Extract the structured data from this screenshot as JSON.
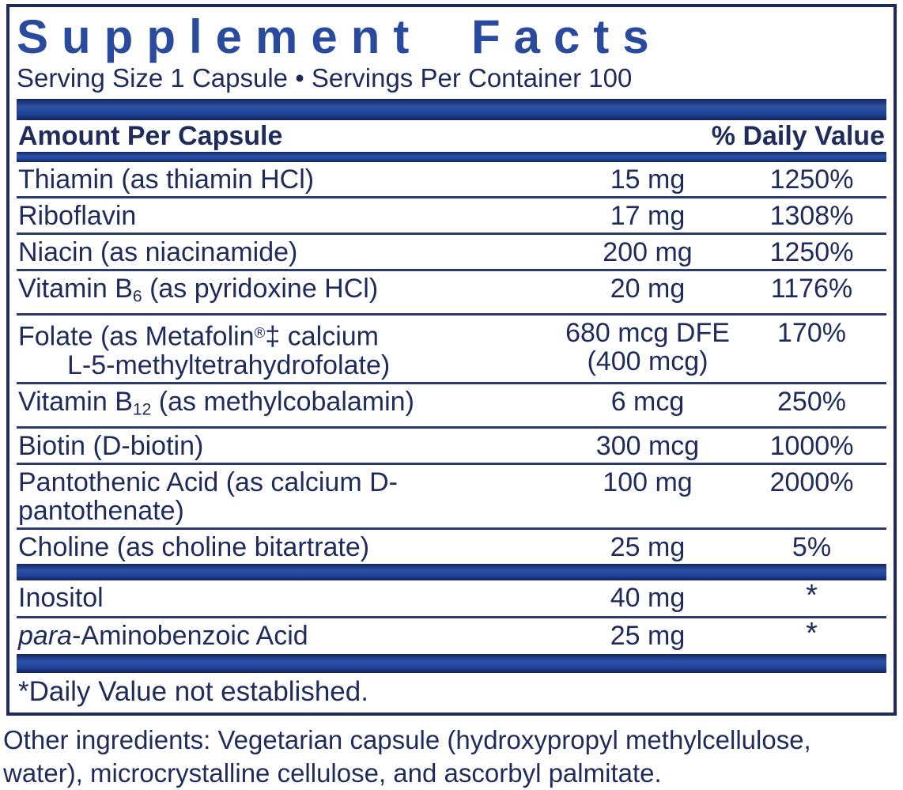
{
  "colors": {
    "text_navy": "#1f2b5c",
    "title_blue": "#2a4a9e",
    "bar_blue": "#20429a",
    "rule_navy": "#2b3a6d"
  },
  "panel": {
    "title": "Supplement Facts",
    "serving_line": "Serving Size 1 Capsule • Servings Per Container 100"
  },
  "table": {
    "col_amount_header": "Amount Per Capsule",
    "col_dv_header": "% Daily Value",
    "rows": [
      {
        "name": [
          {
            "t": "Thiamin (as thiamin HCl)"
          }
        ],
        "amount": "15 mg",
        "dv": "1250%"
      },
      {
        "name": [
          {
            "t": "Riboflavin"
          }
        ],
        "amount": "17 mg",
        "dv": "1308%"
      },
      {
        "name": [
          {
            "t": "Niacin (as niacinamide)"
          }
        ],
        "amount": "200 mg",
        "dv": "1250%"
      },
      {
        "name": [
          {
            "t": "Vitamin B"
          },
          {
            "t": "6",
            "s": "sub"
          },
          {
            "t": " (as pyridoxine HCl)"
          }
        ],
        "amount": "20 mg",
        "dv": "1176%"
      },
      {
        "name": [
          {
            "t": "Folate (as Metafolin"
          },
          {
            "t": "®",
            "s": "sup"
          },
          {
            "t": "‡ calcium"
          }
        ],
        "amount": "680 mcg DFE",
        "dv": "170%",
        "line2": {
          "name": [
            {
              "t": "L-5-methyltetrahydrofolate)"
            }
          ],
          "amount": "(400 mcg)"
        }
      },
      {
        "name": [
          {
            "t": "Vitamin B"
          },
          {
            "t": "12",
            "s": "sub"
          },
          {
            "t": " (as methylcobalamin)"
          }
        ],
        "amount": "6 mcg",
        "dv": "250%"
      },
      {
        "name": [
          {
            "t": "Biotin (D-biotin)"
          }
        ],
        "amount": "300 mcg",
        "dv": "1000%"
      },
      {
        "name": [
          {
            "t": "Pantothenic Acid (as calcium D-pantothenate)"
          }
        ],
        "amount": "100 mg",
        "dv": "2000%"
      },
      {
        "name": [
          {
            "t": "Choline (as choline bitartrate)"
          }
        ],
        "amount": "25 mg",
        "dv": "5%"
      }
    ],
    "rows2": [
      {
        "name": [
          {
            "t": "Inositol"
          }
        ],
        "amount": "40 mg",
        "dv": "*",
        "star": true
      },
      {
        "name": [
          {
            "t": "para",
            "s": "it"
          },
          {
            "t": "-Aminobenzoic Acid"
          }
        ],
        "amount": "25 mg",
        "dv": "*",
        "star": true
      }
    ]
  },
  "footnote": "*Daily Value not established.",
  "other_ingredients": {
    "line1": "Other ingredients: Vegetarian capsule (hydroxypropyl methylcellulose,",
    "line2": "water), microcrystalline cellulose, and ascorbyl palmitate."
  }
}
